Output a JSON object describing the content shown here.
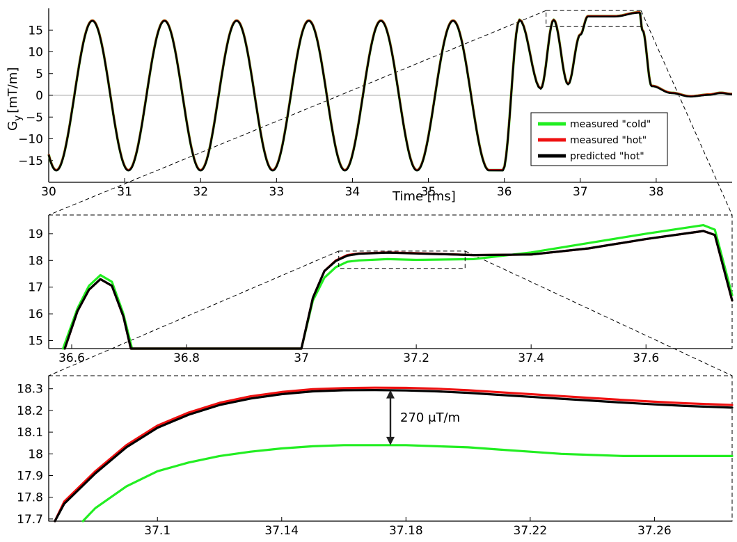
{
  "chart_data": [
    {
      "type": "line",
      "title": "",
      "xlabel": "Time [ms]",
      "ylabel": "G_y [mT/m]",
      "ylabel_main": "G",
      "ylabel_sub": "y",
      "ylabel_unit": "[mT/m]",
      "xlim": [
        30,
        39
      ],
      "ylim": [
        -20,
        20
      ],
      "xticks": [
        30,
        31,
        32,
        33,
        34,
        35,
        36,
        37,
        38
      ],
      "xtick_labels": [
        "30",
        "31",
        "32",
        "33",
        "34",
        "35",
        "36",
        "37",
        "38"
      ],
      "yticks": [
        -15,
        -10,
        -5,
        0,
        5,
        10,
        15
      ],
      "ytick_labels": [
        "−15",
        "−10",
        "−5",
        "0",
        "5",
        "10",
        "15"
      ],
      "zero_line": true,
      "legend": {
        "position": "lower-right",
        "entries": [
          {
            "label": "measured \"cold\"",
            "color": "#22ee22"
          },
          {
            "label": "measured \"hot\"",
            "color": "#ee1111"
          },
          {
            "label": "predicted \"hot\"",
            "color": "#000000"
          }
        ]
      },
      "waveform": {
        "sine_cycles": {
          "start_ms": 30.1,
          "period_ms": 0.95,
          "amplitude": 17.2,
          "count": 6
        },
        "points": [
          [
            35.98,
            -17.2
          ],
          [
            36.2,
            17.4
          ],
          [
            36.48,
            1.6
          ],
          [
            36.65,
            17.4
          ],
          [
            36.84,
            2.6
          ],
          [
            37.0,
            14.0
          ],
          [
            37.1,
            18.2
          ],
          [
            37.45,
            18.2
          ],
          [
            37.78,
            19.1
          ],
          [
            37.82,
            15.0
          ],
          [
            37.94,
            2.2
          ],
          [
            38.2,
            0.6
          ],
          [
            38.45,
            -0.2
          ],
          [
            38.7,
            0.2
          ],
          [
            38.85,
            0.6
          ],
          [
            39.0,
            0.3
          ]
        ]
      },
      "zoom_region": {
        "x": [
          36.55,
          37.8
        ],
        "y": [
          15.8,
          19.5
        ]
      }
    },
    {
      "type": "line",
      "title": "",
      "xlim": [
        36.56,
        37.75
      ],
      "ylim": [
        14.7,
        19.7
      ],
      "xticks": [
        36.6,
        36.8,
        37.0,
        37.2,
        37.4,
        37.6
      ],
      "xtick_labels": [
        "36.6",
        "36.8",
        "37",
        "37.2",
        "37.4",
        "37.6"
      ],
      "yticks": [
        15,
        16,
        17,
        18,
        19
      ],
      "ytick_labels": [
        "15",
        "16",
        "17",
        "18",
        "19"
      ],
      "series": [
        {
          "name": "measured \"cold\"",
          "color": "#22ee22",
          "x": [
            36.585,
            36.61,
            36.63,
            36.65,
            36.67,
            36.69,
            36.705,
            37.0,
            37.02,
            37.04,
            37.06,
            37.08,
            37.1,
            37.15,
            37.2,
            37.3,
            37.4,
            37.5,
            37.6,
            37.7,
            37.72,
            37.75
          ],
          "y": [
            14.7,
            16.2,
            17.05,
            17.45,
            17.2,
            16.0,
            14.7,
            14.7,
            16.5,
            17.35,
            17.75,
            17.95,
            18.0,
            18.05,
            18.02,
            18.05,
            18.3,
            18.65,
            19.0,
            19.32,
            19.15,
            16.7
          ]
        },
        {
          "name": "measured \"hot\"",
          "color": "#ee1111",
          "x": [
            36.588,
            36.61,
            36.63,
            36.65,
            36.67,
            36.69,
            36.703,
            37.0,
            37.02,
            37.04,
            37.06,
            37.08,
            37.1,
            37.15,
            37.2,
            37.3,
            37.4,
            37.5,
            37.6,
            37.7,
            37.72,
            37.75
          ],
          "y": [
            14.7,
            16.1,
            16.9,
            17.3,
            17.05,
            15.9,
            14.7,
            14.7,
            16.6,
            17.6,
            18.0,
            18.2,
            18.26,
            18.3,
            18.27,
            18.2,
            18.22,
            18.45,
            18.8,
            19.1,
            18.95,
            16.5
          ]
        },
        {
          "name": "predicted \"hot\"",
          "color": "#000000",
          "x": [
            36.588,
            36.61,
            36.63,
            36.65,
            36.67,
            36.69,
            36.703,
            37.0,
            37.02,
            37.04,
            37.06,
            37.08,
            37.1,
            37.15,
            37.2,
            37.3,
            37.4,
            37.5,
            37.6,
            37.7,
            37.72,
            37.75
          ],
          "y": [
            14.7,
            16.1,
            16.9,
            17.3,
            17.05,
            15.9,
            14.7,
            14.7,
            16.6,
            17.6,
            17.98,
            18.18,
            18.25,
            18.29,
            18.26,
            18.2,
            18.22,
            18.45,
            18.8,
            19.1,
            18.95,
            16.5
          ]
        }
      ],
      "zoom_region": {
        "x": [
          37.065,
          37.285
        ],
        "y": [
          17.7,
          18.35
        ]
      }
    },
    {
      "type": "line",
      "title": "",
      "xlim": [
        37.065,
        37.285
      ],
      "ylim": [
        17.69,
        18.36
      ],
      "xticks": [
        37.1,
        37.14,
        37.18,
        37.22,
        37.26
      ],
      "xtick_labels": [
        "37.1",
        "37.14",
        "37.18",
        "37.22",
        "37.26"
      ],
      "yticks": [
        17.7,
        17.8,
        17.9,
        18.0,
        18.1,
        18.2,
        18.3
      ],
      "ytick_labels": [
        "17.7",
        "17.8",
        "17.9",
        "18",
        "18.1",
        "18.2",
        "18.3"
      ],
      "series": [
        {
          "name": "measured \"cold\"",
          "color": "#22ee22",
          "x": [
            37.076,
            37.08,
            37.09,
            37.1,
            37.11,
            37.12,
            37.13,
            37.14,
            37.15,
            37.16,
            37.17,
            37.18,
            37.19,
            37.2,
            37.21,
            37.22,
            37.23,
            37.24,
            37.25,
            37.26,
            37.27,
            37.285
          ],
          "y": [
            17.69,
            17.75,
            17.85,
            17.92,
            17.96,
            17.99,
            18.01,
            18.025,
            18.035,
            18.04,
            18.04,
            18.04,
            18.035,
            18.03,
            18.02,
            18.01,
            18.0,
            17.995,
            17.99,
            17.99,
            17.99,
            17.99
          ]
        },
        {
          "name": "measured \"hot\"",
          "color": "#ee1111",
          "x": [
            37.067,
            37.07,
            37.08,
            37.09,
            37.1,
            37.11,
            37.12,
            37.13,
            37.14,
            37.15,
            37.16,
            37.17,
            37.18,
            37.19,
            37.2,
            37.21,
            37.22,
            37.23,
            37.24,
            37.25,
            37.26,
            37.27,
            37.285
          ],
          "y": [
            17.69,
            17.78,
            17.92,
            18.04,
            18.13,
            18.19,
            18.235,
            18.265,
            18.285,
            18.298,
            18.303,
            18.305,
            18.304,
            18.3,
            18.293,
            18.284,
            18.275,
            18.266,
            18.257,
            18.248,
            18.24,
            18.233,
            18.225
          ]
        },
        {
          "name": "predicted \"hot\"",
          "color": "#000000",
          "x": [
            37.067,
            37.07,
            37.08,
            37.09,
            37.1,
            37.11,
            37.12,
            37.13,
            37.14,
            37.15,
            37.16,
            37.17,
            37.18,
            37.19,
            37.2,
            37.21,
            37.22,
            37.23,
            37.24,
            37.25,
            37.26,
            37.27,
            37.285
          ],
          "y": [
            17.69,
            17.77,
            17.91,
            18.03,
            18.12,
            18.18,
            18.225,
            18.255,
            18.275,
            18.288,
            18.293,
            18.294,
            18.292,
            18.288,
            18.281,
            18.272,
            18.263,
            18.254,
            18.245,
            18.236,
            18.228,
            18.221,
            18.213
          ]
        }
      ],
      "annotation": {
        "text": "270 μT/m",
        "x": 37.175,
        "y_from": 18.04,
        "y_to": 18.294
      }
    }
  ]
}
